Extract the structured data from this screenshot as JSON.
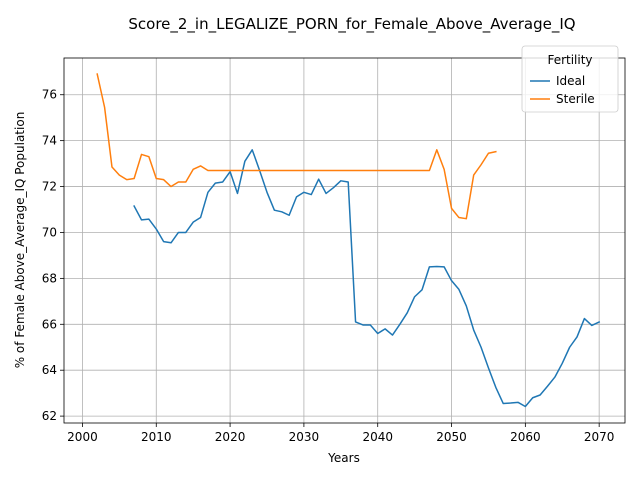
{
  "chart_data": {
    "type": "line",
    "title": "Score_2_in_LEGALIZE_PORN_for_Female_Above_Average_IQ",
    "xlabel": "Years",
    "ylabel": "% of Female Above_Average_IQ Population",
    "xlim": [
      1997.5,
      2073.5
    ],
    "ylim": [
      61.7,
      77.6
    ],
    "xticks": [
      2000,
      2010,
      2020,
      2030,
      2040,
      2050,
      2060,
      2070
    ],
    "yticks": [
      62,
      64,
      66,
      68,
      70,
      72,
      74,
      76
    ],
    "grid": true,
    "legend": {
      "title": "Fertility",
      "placement": "top-right",
      "entries": [
        "Ideal",
        "Sterile"
      ]
    },
    "series": [
      {
        "name": "Ideal",
        "color": "#1f77b4",
        "x": [
          2007,
          2008,
          2009,
          2010,
          2011,
          2012,
          2013,
          2014,
          2015,
          2016,
          2017,
          2018,
          2019,
          2020,
          2021,
          2022,
          2023,
          2024,
          2025,
          2026,
          2027,
          2028,
          2029,
          2030,
          2031,
          2032,
          2033,
          2034,
          2035,
          2036,
          2037,
          2038,
          2039,
          2040,
          2041,
          2042,
          2043,
          2044,
          2045,
          2046,
          2047,
          2048,
          2049,
          2050,
          2051,
          2052,
          2053,
          2054,
          2055,
          2056,
          2057,
          2058,
          2059,
          2060,
          2061,
          2062,
          2063,
          2064,
          2065,
          2066,
          2067,
          2068,
          2069,
          2070
        ],
        "values": [
          71.15,
          70.55,
          70.58,
          70.15,
          69.6,
          69.55,
          70.0,
          70.0,
          70.45,
          70.65,
          71.75,
          72.15,
          72.2,
          72.65,
          71.7,
          73.1,
          73.6,
          72.7,
          71.75,
          70.97,
          70.9,
          70.75,
          71.55,
          71.75,
          71.65,
          72.32,
          71.7,
          71.95,
          72.25,
          72.2,
          66.1,
          65.97,
          65.97,
          65.6,
          65.8,
          65.53,
          66.0,
          66.5,
          67.2,
          67.5,
          68.5,
          68.52,
          68.5,
          67.9,
          67.52,
          66.8,
          65.75,
          65.0,
          64.1,
          63.25,
          62.55,
          62.57,
          62.6,
          62.42,
          62.8,
          62.92,
          63.3,
          63.7,
          64.3,
          65.0,
          65.45,
          66.25,
          65.95,
          66.1
        ]
      },
      {
        "name": "Sterile",
        "color": "#ff7f0e",
        "x": [
          2002,
          2003,
          2004,
          2005,
          2006,
          2007,
          2008,
          2009,
          2010,
          2011,
          2012,
          2013,
          2014,
          2015,
          2016,
          2017,
          2018,
          2019,
          2020,
          2021,
          2022,
          2023,
          2024,
          2025,
          2026,
          2027,
          2028,
          2029,
          2030,
          2031,
          2032,
          2033,
          2034,
          2035,
          2036,
          2037,
          2038,
          2039,
          2040,
          2041,
          2042,
          2043,
          2044,
          2045,
          2046,
          2047,
          2048,
          2049,
          2050,
          2051,
          2052,
          2053,
          2054,
          2055,
          2056
        ],
        "values": [
          76.9,
          75.45,
          72.85,
          72.5,
          72.3,
          72.35,
          73.4,
          73.3,
          72.35,
          72.3,
          72.0,
          72.2,
          72.2,
          72.75,
          72.9,
          72.7,
          72.7,
          72.7,
          72.7,
          72.7,
          72.7,
          72.7,
          72.7,
          72.7,
          72.7,
          72.7,
          72.7,
          72.7,
          72.7,
          72.7,
          72.7,
          72.7,
          72.7,
          72.7,
          72.7,
          72.7,
          72.7,
          72.7,
          72.7,
          72.7,
          72.7,
          72.7,
          72.7,
          72.7,
          72.7,
          72.7,
          73.6,
          72.75,
          71.05,
          70.65,
          70.6,
          72.5,
          72.95,
          73.45,
          73.52
        ]
      }
    ]
  }
}
